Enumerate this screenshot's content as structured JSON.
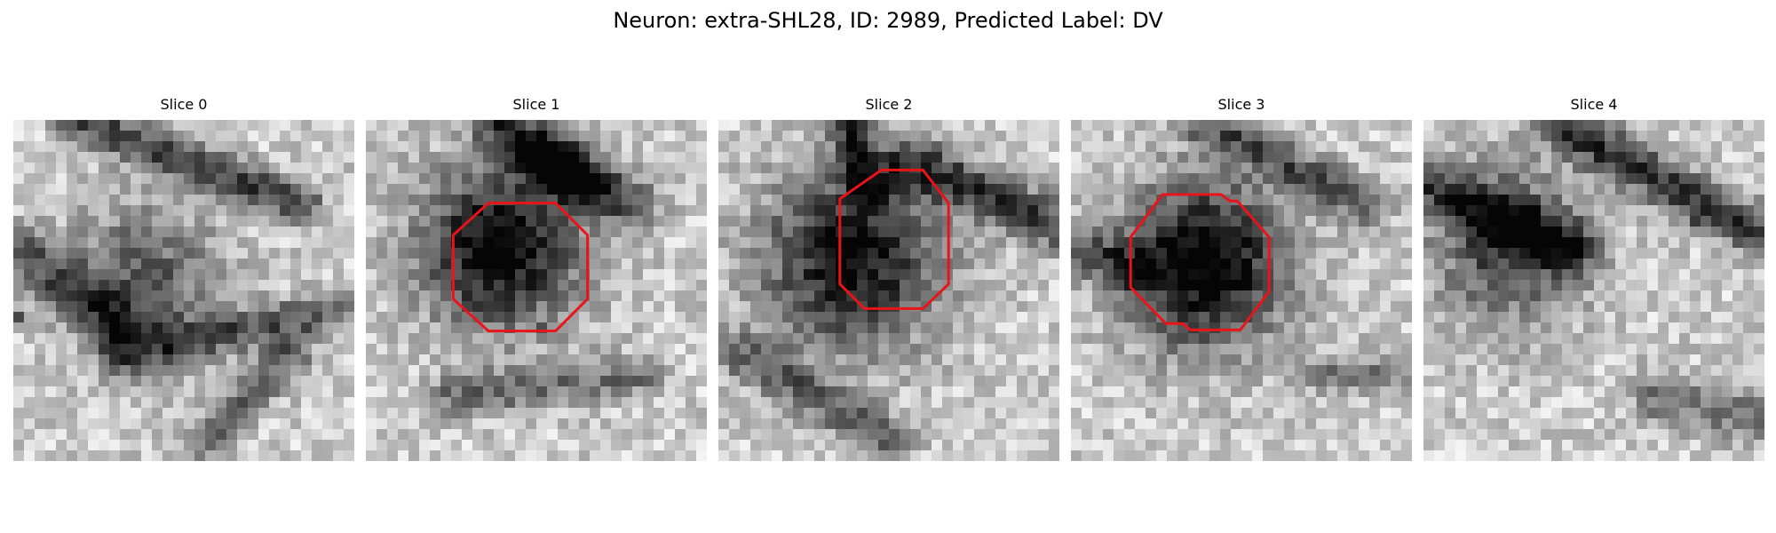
{
  "figure": {
    "title": "Neuron: extra-SHL28, ID: 2989, Predicted Label: DV"
  },
  "panels": [
    {
      "title": "Slice 0",
      "has_contour": false
    },
    {
      "title": "Slice 1",
      "has_contour": true
    },
    {
      "title": "Slice 2",
      "has_contour": true
    },
    {
      "title": "Slice 3",
      "has_contour": true
    },
    {
      "title": "Slice 4",
      "has_contour": false
    }
  ],
  "colors": {
    "contour": "#e8141a",
    "background": "#ffffff"
  }
}
